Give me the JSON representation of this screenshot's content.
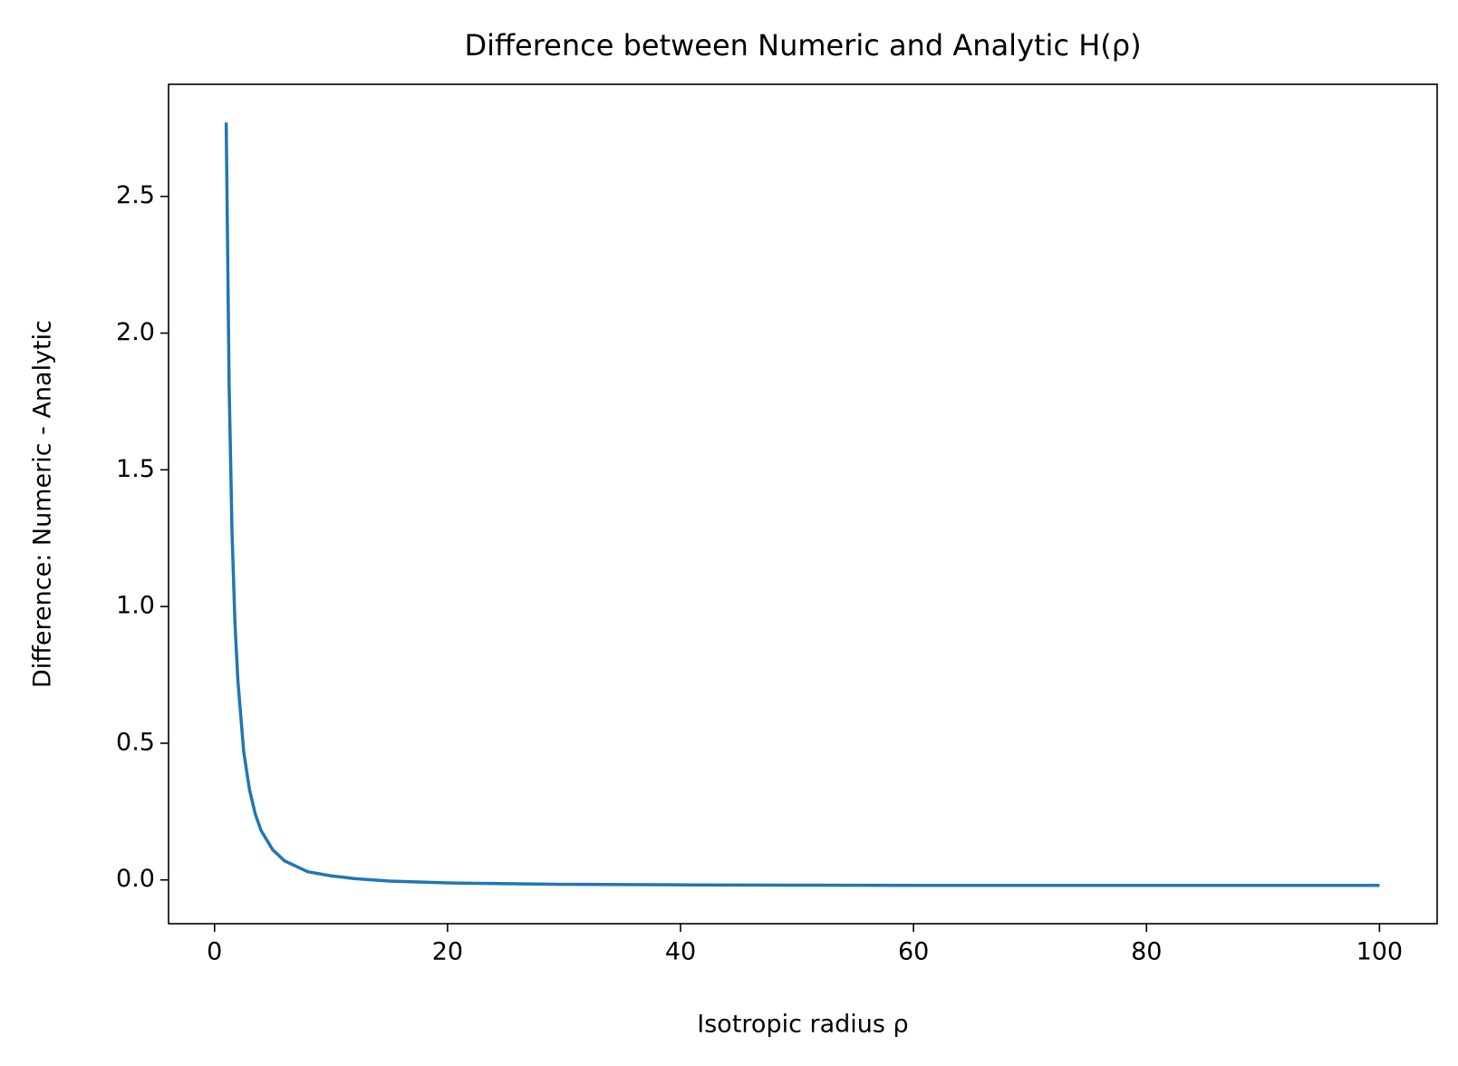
{
  "chart_data": {
    "type": "line",
    "title": "Difference between Numeric and Analytic H(ρ)",
    "x_label": "Isotropic radius ρ",
    "y_label": "Difference: Numeric - Analytic",
    "x": [
      1,
      1.25,
      1.5,
      1.75,
      2,
      2.5,
      3,
      3.5,
      4,
      5,
      6,
      7,
      8,
      10,
      12,
      15,
      20,
      30,
      40,
      50,
      60,
      70,
      80,
      90,
      100
    ],
    "series": [
      {
        "color": "#1f77b4",
        "values": [
          2.77,
          1.81,
          1.27,
          0.94,
          0.73,
          0.47,
          0.33,
          0.24,
          0.18,
          0.11,
          0.07,
          0.05,
          0.03,
          0.015,
          0.005,
          -0.004,
          -0.011,
          -0.016,
          -0.018,
          -0.019,
          -0.02,
          -0.02,
          -0.02,
          -0.02,
          -0.02
        ]
      }
    ],
    "xlim": [
      -3.95,
      104.95
    ],
    "ylim": [
      -0.16,
      2.91
    ],
    "xticks": [
      0,
      20,
      40,
      60,
      80,
      100
    ],
    "yticks": [
      {
        "value": 0,
        "label": "0.0"
      },
      {
        "value": 0.5,
        "label": "0.5"
      },
      {
        "value": 1,
        "label": "1.0"
      },
      {
        "value": 1.5,
        "label": "1.5"
      },
      {
        "value": 2,
        "label": "2.0"
      },
      {
        "value": 2.5,
        "label": "2.5"
      }
    ],
    "grid": false
  }
}
